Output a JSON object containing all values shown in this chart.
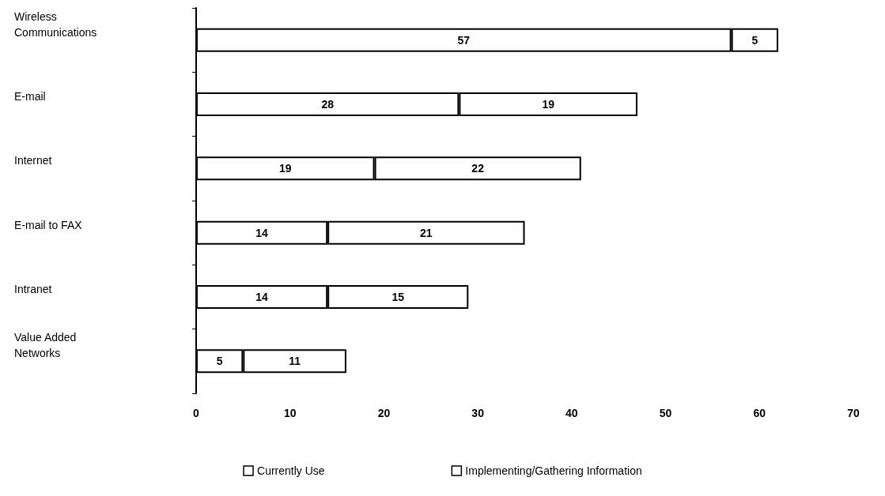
{
  "chart_data": {
    "type": "bar",
    "orientation": "horizontal",
    "stacked": true,
    "data_labels": true,
    "grid": false,
    "legend": "bottom",
    "categories": [
      "Wireless Communications",
      "E-mail",
      "Internet",
      "E-mail to FAX",
      "Intranet",
      "Value Added Networks"
    ],
    "series": [
      {
        "name": "Currently Use",
        "color": "#ffffff",
        "values": [
          57,
          28,
          19,
          14,
          14,
          5
        ]
      },
      {
        "name": "Implementing/Gathering Information",
        "color": "#ffffff",
        "values": [
          5,
          19,
          22,
          21,
          15,
          11
        ]
      }
    ],
    "xlim": [
      0,
      70
    ],
    "xticks": [
      0,
      10,
      20,
      30,
      40,
      50,
      60,
      70
    ]
  }
}
